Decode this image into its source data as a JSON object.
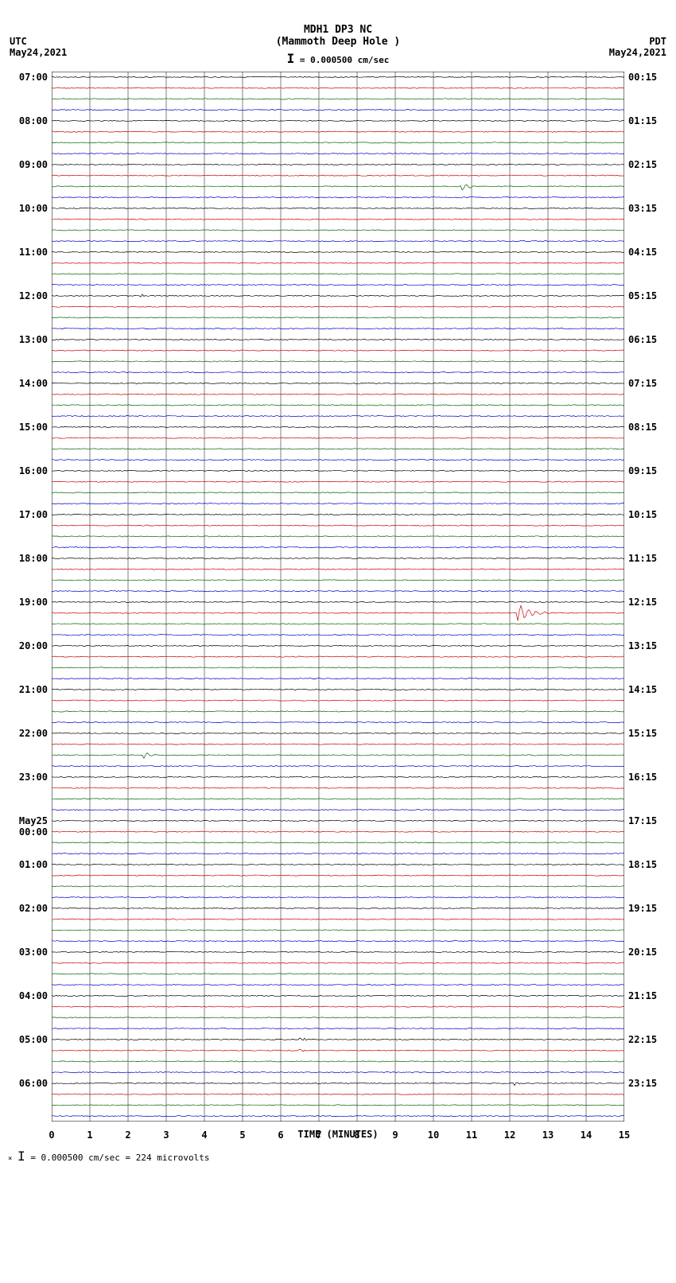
{
  "header": {
    "station": "MDH1 DP3 NC",
    "location": "(Mammoth Deep Hole )",
    "scale_bar": "= 0.000500 cm/sec"
  },
  "left_tz": {
    "label": "UTC",
    "date": "May24,2021"
  },
  "right_tz": {
    "label": "PDT",
    "date": "May24,2021"
  },
  "footer": "= 0.000500 cm/sec =    224 microvolts",
  "xaxis": {
    "label": "TIME (MINUTES)",
    "ticks": [
      0,
      1,
      2,
      3,
      4,
      5,
      6,
      7,
      8,
      9,
      10,
      11,
      12,
      13,
      14,
      15
    ]
  },
  "plot": {
    "bg": "#ffffff",
    "grid_color": "#000000",
    "x_minutes": 15,
    "n_traces": 96,
    "trace_colors": [
      "#000000",
      "#cc0000",
      "#006600",
      "#0000cc"
    ],
    "left_labels": [
      {
        "i": 0,
        "t": "07:00"
      },
      {
        "i": 4,
        "t": "08:00"
      },
      {
        "i": 8,
        "t": "09:00"
      },
      {
        "i": 12,
        "t": "10:00"
      },
      {
        "i": 16,
        "t": "11:00"
      },
      {
        "i": 20,
        "t": "12:00"
      },
      {
        "i": 24,
        "t": "13:00"
      },
      {
        "i": 28,
        "t": "14:00"
      },
      {
        "i": 32,
        "t": "15:00"
      },
      {
        "i": 36,
        "t": "16:00"
      },
      {
        "i": 40,
        "t": "17:00"
      },
      {
        "i": 44,
        "t": "18:00"
      },
      {
        "i": 48,
        "t": "19:00"
      },
      {
        "i": 52,
        "t": "20:00"
      },
      {
        "i": 56,
        "t": "21:00"
      },
      {
        "i": 60,
        "t": "22:00"
      },
      {
        "i": 64,
        "t": "23:00"
      },
      {
        "i": 68,
        "t": "May25"
      },
      {
        "i": 69,
        "t": "00:00"
      },
      {
        "i": 72,
        "t": "01:00"
      },
      {
        "i": 76,
        "t": "02:00"
      },
      {
        "i": 80,
        "t": "03:00"
      },
      {
        "i": 84,
        "t": "04:00"
      },
      {
        "i": 88,
        "t": "05:00"
      },
      {
        "i": 92,
        "t": "06:00"
      }
    ],
    "right_labels": [
      {
        "i": 0,
        "t": "00:15"
      },
      {
        "i": 4,
        "t": "01:15"
      },
      {
        "i": 8,
        "t": "02:15"
      },
      {
        "i": 12,
        "t": "03:15"
      },
      {
        "i": 16,
        "t": "04:15"
      },
      {
        "i": 20,
        "t": "05:15"
      },
      {
        "i": 24,
        "t": "06:15"
      },
      {
        "i": 28,
        "t": "07:15"
      },
      {
        "i": 32,
        "t": "08:15"
      },
      {
        "i": 36,
        "t": "09:15"
      },
      {
        "i": 40,
        "t": "10:15"
      },
      {
        "i": 44,
        "t": "11:15"
      },
      {
        "i": 48,
        "t": "12:15"
      },
      {
        "i": 52,
        "t": "13:15"
      },
      {
        "i": 56,
        "t": "14:15"
      },
      {
        "i": 60,
        "t": "15:15"
      },
      {
        "i": 64,
        "t": "16:15"
      },
      {
        "i": 68,
        "t": "17:15"
      },
      {
        "i": 72,
        "t": "18:15"
      },
      {
        "i": 76,
        "t": "19:15"
      },
      {
        "i": 80,
        "t": "20:15"
      },
      {
        "i": 84,
        "t": "21:15"
      },
      {
        "i": 88,
        "t": "22:15"
      },
      {
        "i": 92,
        "t": "23:15"
      }
    ],
    "events": [
      {
        "trace": 10,
        "minute": 10.7,
        "width": 0.6,
        "amp": 6,
        "dense": true
      },
      {
        "trace": 20,
        "minute": 2.3,
        "width": 0.3,
        "amp": 4,
        "dense": false
      },
      {
        "trace": 49,
        "minute": 12.2,
        "width": 0.9,
        "amp": 12,
        "dense": true
      },
      {
        "trace": 62,
        "minute": 2.4,
        "width": 0.4,
        "amp": 5,
        "dense": true
      },
      {
        "trace": 88,
        "minute": 6.5,
        "width": 0.3,
        "amp": 4,
        "dense": false
      },
      {
        "trace": 89,
        "minute": 6.5,
        "width": 0.3,
        "amp": 3,
        "dense": false
      },
      {
        "trace": 92,
        "minute": 12.1,
        "width": 0.3,
        "amp": 4,
        "dense": false
      }
    ],
    "noise_amp": 0.6
  }
}
